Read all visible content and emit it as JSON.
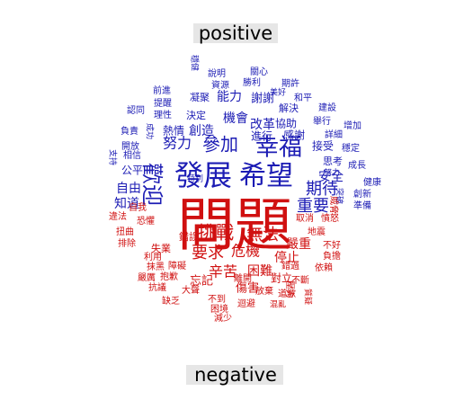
{
  "chart_data": {
    "type": "wordcloud",
    "title": "",
    "groups": [
      {
        "name": "positive",
        "color": "#1c1cb4"
      },
      {
        "name": "negative",
        "color": "#d01010"
      }
    ],
    "words": [
      {
        "text": "問題",
        "group": "negative",
        "weight": 100
      },
      {
        "text": "發展",
        "group": "positive",
        "weight": 58
      },
      {
        "text": "希望",
        "group": "positive",
        "weight": 50
      },
      {
        "text": "歡迎",
        "group": "positive",
        "weight": 34
      },
      {
        "text": "幸福",
        "group": "positive",
        "weight": 30
      },
      {
        "text": "挑戰",
        "group": "negative",
        "weight": 26
      },
      {
        "text": "無法",
        "group": "negative",
        "weight": 22
      },
      {
        "text": "要求",
        "group": "negative",
        "weight": 22
      },
      {
        "text": "危機",
        "group": "negative",
        "weight": 20
      },
      {
        "text": "努力",
        "group": "positive",
        "weight": 20
      },
      {
        "text": "參加",
        "group": "positive",
        "weight": 24
      },
      {
        "text": "重要",
        "group": "positive",
        "weight": 22
      },
      {
        "text": "期待",
        "group": "positive",
        "weight": 20
      },
      {
        "text": "辛苦",
        "group": "negative",
        "weight": 18
      },
      {
        "text": "困難",
        "group": "negative",
        "weight": 16
      },
      {
        "text": "嚴重",
        "group": "negative",
        "weight": 16
      },
      {
        "text": "停止",
        "group": "negative",
        "weight": 16
      },
      {
        "text": "自由",
        "group": "positive",
        "weight": 16
      },
      {
        "text": "知道",
        "group": "positive",
        "weight": 16
      },
      {
        "text": "機會",
        "group": "positive",
        "weight": 16
      },
      {
        "text": "改革",
        "group": "positive",
        "weight": 16
      },
      {
        "text": "創造",
        "group": "positive",
        "weight": 16
      },
      {
        "text": "熱情",
        "group": "positive",
        "weight": 14
      },
      {
        "text": "能力",
        "group": "positive",
        "weight": 16
      },
      {
        "text": "謝謝",
        "group": "positive",
        "weight": 14
      },
      {
        "text": "進行",
        "group": "positive",
        "weight": 14
      },
      {
        "text": "感謝",
        "group": "positive",
        "weight": 13
      },
      {
        "text": "公平",
        "group": "positive",
        "weight": 13
      },
      {
        "text": "安全",
        "group": "positive",
        "weight": 14
      },
      {
        "text": "接受",
        "group": "positive",
        "weight": 13
      },
      {
        "text": "協助",
        "group": "positive",
        "weight": 13
      },
      {
        "text": "思考",
        "group": "positive",
        "weight": 12
      },
      {
        "text": "忘記",
        "group": "negative",
        "weight": 14
      },
      {
        "text": "傷害",
        "group": "negative",
        "weight": 14
      },
      {
        "text": "對立",
        "group": "negative",
        "weight": 13
      },
      {
        "text": "錯誤",
        "group": "negative",
        "weight": 12
      },
      {
        "text": "失業",
        "group": "negative",
        "weight": 12
      },
      {
        "text": "凝聚",
        "group": "positive",
        "weight": 12
      },
      {
        "text": "決定",
        "group": "positive",
        "weight": 12
      },
      {
        "text": "解決",
        "group": "positive",
        "weight": 12
      },
      {
        "text": "說明",
        "group": "positive",
        "weight": 11
      },
      {
        "text": "關心",
        "group": "positive",
        "weight": 11
      },
      {
        "text": "資源",
        "group": "positive",
        "weight": 11
      },
      {
        "text": "勝利",
        "group": "positive",
        "weight": 11
      },
      {
        "text": "期許",
        "group": "positive",
        "weight": 10
      },
      {
        "text": "前進",
        "group": "positive",
        "weight": 11
      },
      {
        "text": "提醒",
        "group": "positive",
        "weight": 11
      },
      {
        "text": "理性",
        "group": "positive",
        "weight": 11
      },
      {
        "text": "和平",
        "group": "positive",
        "weight": 10
      },
      {
        "text": "建設",
        "group": "positive",
        "weight": 10
      },
      {
        "text": "舉行",
        "group": "positive",
        "weight": 10
      },
      {
        "text": "認同",
        "group": "positive",
        "weight": 10
      },
      {
        "text": "詳細",
        "group": "positive",
        "weight": 10
      },
      {
        "text": "增加",
        "group": "positive",
        "weight": 10
      },
      {
        "text": "負責",
        "group": "positive",
        "weight": 10
      },
      {
        "text": "穩定",
        "group": "positive",
        "weight": 10
      },
      {
        "text": "開放",
        "group": "positive",
        "weight": 10
      },
      {
        "text": "成長",
        "group": "positive",
        "weight": 10
      },
      {
        "text": "相信",
        "group": "positive",
        "weight": 10
      },
      {
        "text": "健康",
        "group": "positive",
        "weight": 10
      },
      {
        "text": "創新",
        "group": "positive",
        "weight": 10
      },
      {
        "text": "準備",
        "group": "positive",
        "weight": 10
      },
      {
        "text": "特別",
        "group": "positive",
        "weight": 9
      },
      {
        "text": "美好",
        "group": "positive",
        "weight": 9
      },
      {
        "text": "成功",
        "group": "positive",
        "weight": 9
      },
      {
        "text": "支持",
        "group": "positive",
        "weight": 9
      },
      {
        "text": "穩健",
        "group": "positive",
        "weight": 9
      },
      {
        "text": "突破",
        "group": "positive",
        "weight": 8
      },
      {
        "text": "努力",
        "group": "positive",
        "weight": 8
      },
      {
        "text": "自我",
        "group": "negative",
        "weight": 10
      },
      {
        "text": "違法",
        "group": "negative",
        "weight": 10
      },
      {
        "text": "恐懼",
        "group": "negative",
        "weight": 10
      },
      {
        "text": "扭曲",
        "group": "negative",
        "weight": 10
      },
      {
        "text": "排除",
        "group": "negative",
        "weight": 10
      },
      {
        "text": "利用",
        "group": "negative",
        "weight": 10
      },
      {
        "text": "抹黑",
        "group": "negative",
        "weight": 10
      },
      {
        "text": "障礙",
        "group": "negative",
        "weight": 10
      },
      {
        "text": "嚴厲",
        "group": "negative",
        "weight": 10
      },
      {
        "text": "抱歉",
        "group": "negative",
        "weight": 10
      },
      {
        "text": "抗議",
        "group": "negative",
        "weight": 10
      },
      {
        "text": "離開",
        "group": "negative",
        "weight": 10
      },
      {
        "text": "錯過",
        "group": "negative",
        "weight": 10
      },
      {
        "text": "依賴",
        "group": "negative",
        "weight": 10
      },
      {
        "text": "取消",
        "group": "negative",
        "weight": 10
      },
      {
        "text": "憤怒",
        "group": "negative",
        "weight": 10
      },
      {
        "text": "地震",
        "group": "negative",
        "weight": 10
      },
      {
        "text": "不好",
        "group": "negative",
        "weight": 10
      },
      {
        "text": "負擔",
        "group": "negative",
        "weight": 10
      },
      {
        "text": "放棄",
        "group": "negative",
        "weight": 10
      },
      {
        "text": "道歉",
        "group": "negative",
        "weight": 10
      },
      {
        "text": "不斷",
        "group": "negative",
        "weight": 10
      },
      {
        "text": "壓力",
        "group": "negative",
        "weight": 10
      },
      {
        "text": "大聲",
        "group": "negative",
        "weight": 10
      },
      {
        "text": "不到",
        "group": "negative",
        "weight": 10
      },
      {
        "text": "缺乏",
        "group": "negative",
        "weight": 10
      },
      {
        "text": "困境",
        "group": "negative",
        "weight": 10
      },
      {
        "text": "迴避",
        "group": "negative",
        "weight": 10
      },
      {
        "text": "減少",
        "group": "negative",
        "weight": 10
      },
      {
        "text": "威脅",
        "group": "negative",
        "weight": 10
      },
      {
        "text": "質疑",
        "group": "negative",
        "weight": 10
      },
      {
        "text": "混亂",
        "group": "negative",
        "weight": 10
      }
    ]
  }
}
